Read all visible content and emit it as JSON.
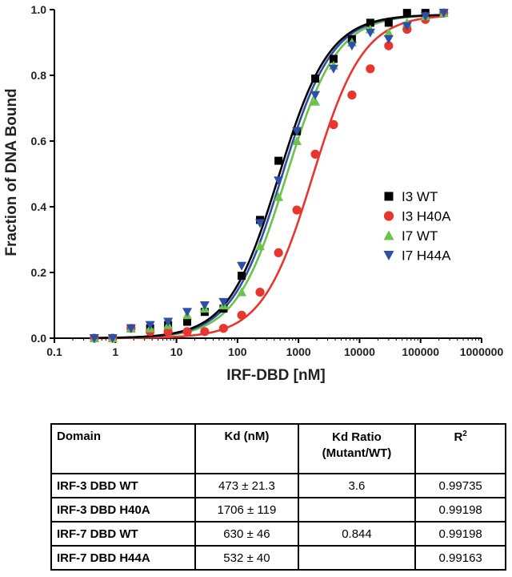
{
  "chart_data": {
    "type": "scatter",
    "xscale": "log",
    "xlabel": "IRF-DBD [nM]",
    "ylabel": "Fraction of DNA Bound",
    "xlim": [
      0.1,
      1000000
    ],
    "ylim": [
      0.0,
      1.0
    ],
    "xtick_labels": [
      "0.1",
      "1",
      "10",
      "100",
      "1000",
      "10000",
      "100000",
      "1000000"
    ],
    "ytick_labels": [
      "0.0",
      "0.2",
      "0.4",
      "0.6",
      "0.8",
      "1.0"
    ],
    "legend_position": "center-right",
    "series": [
      {
        "name": "I3 WT",
        "marker": "square",
        "color": "#000000",
        "kd": 473,
        "x": [
          0.45,
          0.9,
          1.8,
          3.7,
          7.3,
          15,
          29,
          59,
          117,
          234,
          470,
          940,
          1880,
          3750,
          7500,
          15000,
          30000,
          60000,
          120000,
          240000
        ],
        "y": [
          0.0,
          0.0,
          0.03,
          0.03,
          0.04,
          0.05,
          0.08,
          0.09,
          0.19,
          0.36,
          0.54,
          0.63,
          0.79,
          0.85,
          0.91,
          0.96,
          0.96,
          0.99,
          0.99,
          0.99
        ]
      },
      {
        "name": "I3 H40A",
        "marker": "circle",
        "color": "#e8362e",
        "kd": 1706,
        "x": [
          0.45,
          0.9,
          1.8,
          3.7,
          7.3,
          15,
          29,
          59,
          117,
          234,
          470,
          940,
          1880,
          3750,
          7500,
          15000,
          30000,
          60000,
          120000,
          240000
        ],
        "y": [
          0.0,
          0.0,
          0.03,
          0.02,
          0.02,
          0.02,
          0.02,
          0.03,
          0.07,
          0.14,
          0.26,
          0.39,
          0.56,
          0.65,
          0.74,
          0.82,
          0.89,
          0.94,
          0.97,
          0.99
        ]
      },
      {
        "name": "I7 WT",
        "marker": "triangle-up",
        "color": "#6cc24a",
        "kd": 630,
        "x": [
          0.45,
          0.9,
          1.8,
          3.7,
          7.3,
          15,
          29,
          59,
          117,
          234,
          470,
          940,
          1880,
          3750,
          7500,
          15000,
          30000,
          60000,
          120000,
          240000
        ],
        "y": [
          0.0,
          0.0,
          0.03,
          0.03,
          0.04,
          0.07,
          0.09,
          0.1,
          0.14,
          0.28,
          0.43,
          0.6,
          0.72,
          0.83,
          0.9,
          0.94,
          0.93,
          0.96,
          0.98,
          0.99
        ]
      },
      {
        "name": "I7 H44A",
        "marker": "triangle-down",
        "color": "#2e4fa8",
        "kd": 532,
        "x": [
          0.45,
          0.9,
          1.8,
          3.7,
          7.3,
          15,
          29,
          59,
          117,
          234,
          470,
          940,
          1880,
          3750,
          7500,
          15000,
          30000,
          60000,
          120000,
          240000
        ],
        "y": [
          0.0,
          0.0,
          0.03,
          0.04,
          0.05,
          0.08,
          0.1,
          0.11,
          0.22,
          0.35,
          0.48,
          0.63,
          0.74,
          0.82,
          0.89,
          0.93,
          0.91,
          0.95,
          0.98,
          0.99
        ]
      }
    ]
  },
  "table": {
    "headers": {
      "domain": "Domain",
      "kd": "Kd (nM)",
      "ratio_line1": "Kd Ratio",
      "ratio_line2": "(Mutant/WT)",
      "r2_base": "R",
      "r2_sup": "2"
    },
    "rows": [
      {
        "domain": "IRF-3 DBD WT",
        "kd": "473 ± 21.3",
        "ratio": "3.6",
        "r2": "0.99735"
      },
      {
        "domain": "IRF-3 DBD H40A",
        "kd": "1706 ± 119",
        "ratio": "",
        "r2": "0.99198"
      },
      {
        "domain": "IRF-7 DBD WT",
        "kd": "630 ± 46",
        "ratio": "0.844",
        "r2": "0.99198"
      },
      {
        "domain": "IRF-7 DBD H44A",
        "kd": "532 ± 40",
        "ratio": "",
        "r2": "0.99163"
      }
    ]
  }
}
